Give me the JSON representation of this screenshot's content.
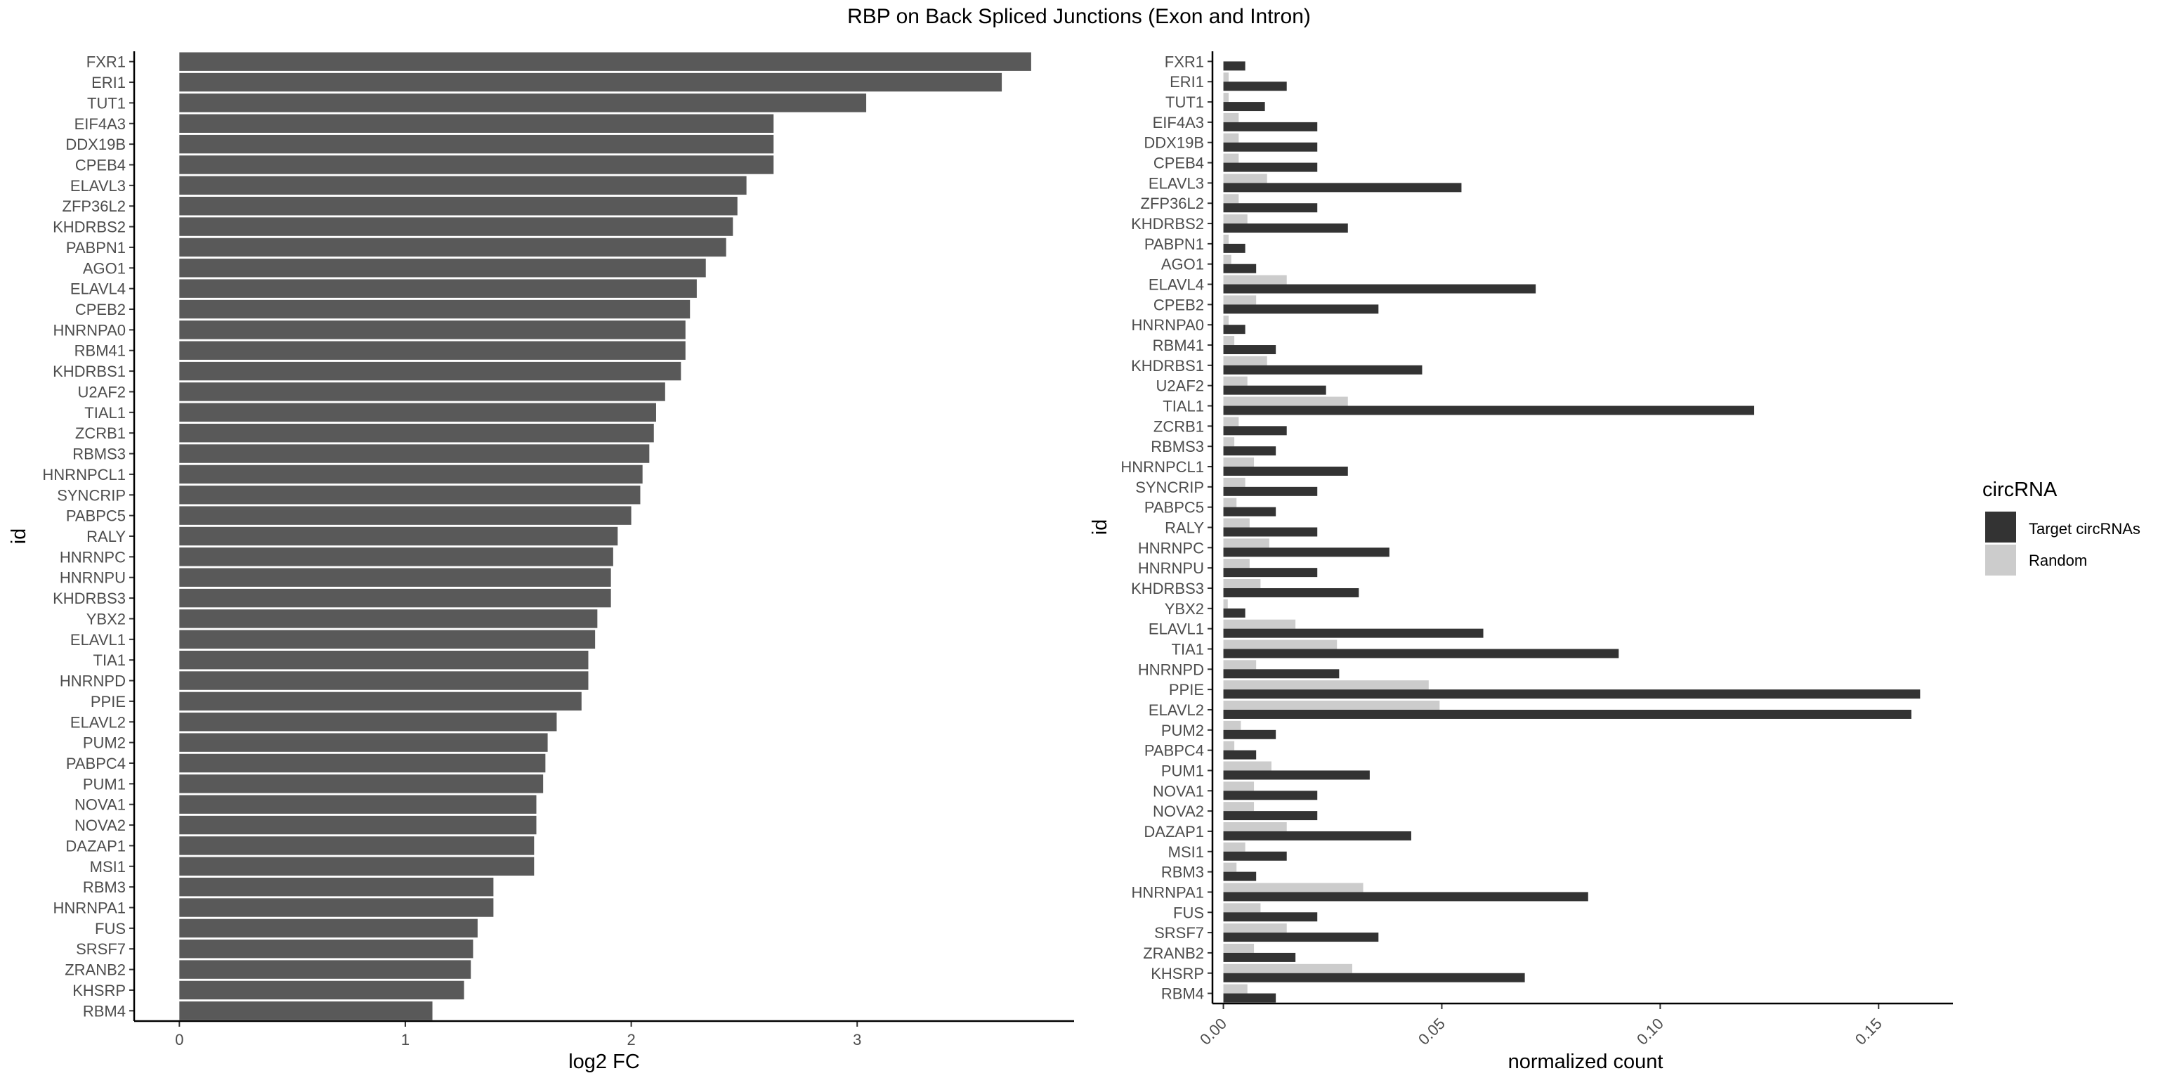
{
  "title": "RBP on Back Spliced Junctions (Exon and Intron)",
  "chart_data": [
    {
      "type": "bar",
      "orientation": "horizontal",
      "xlabel": "log2 FC",
      "ylabel": "id",
      "xlim": [
        -0.2,
        3.96
      ],
      "xticks": [
        "0",
        "1",
        "2",
        "3"
      ],
      "grid": false,
      "bar_color": "#595959",
      "categories": [
        "FXR1",
        "ERI1",
        "TUT1",
        "EIF4A3",
        "DDX19B",
        "CPEB4",
        "ELAVL3",
        "ZFP36L2",
        "KHDRBS2",
        "PABPN1",
        "AGO1",
        "ELAVL4",
        "CPEB2",
        "HNRNPA0",
        "RBM41",
        "KHDRBS1",
        "U2AF2",
        "TIAL1",
        "ZCRB1",
        "RBMS3",
        "HNRNPCL1",
        "SYNCRIP",
        "PABPC5",
        "RALY",
        "HNRNPC",
        "HNRNPU",
        "KHDRBS3",
        "YBX2",
        "ELAVL1",
        "TIA1",
        "HNRNPD",
        "PPIE",
        "ELAVL2",
        "PUM2",
        "PABPC4",
        "PUM1",
        "NOVA1",
        "NOVA2",
        "DAZAP1",
        "MSI1",
        "RBM3",
        "HNRNPA1",
        "FUS",
        "SRSF7",
        "ZRANB2",
        "KHSRP",
        "RBM4"
      ],
      "values": [
        3.77,
        3.64,
        3.04,
        2.63,
        2.63,
        2.63,
        2.51,
        2.47,
        2.45,
        2.42,
        2.33,
        2.29,
        2.26,
        2.24,
        2.24,
        2.22,
        2.15,
        2.11,
        2.1,
        2.08,
        2.05,
        2.04,
        2.0,
        1.94,
        1.92,
        1.91,
        1.91,
        1.85,
        1.84,
        1.81,
        1.81,
        1.78,
        1.67,
        1.63,
        1.62,
        1.61,
        1.58,
        1.58,
        1.57,
        1.57,
        1.39,
        1.39,
        1.32,
        1.3,
        1.29,
        1.26,
        1.12
      ]
    },
    {
      "type": "bar",
      "orientation": "horizontal",
      "grouped": true,
      "xlabel": "normalized count",
      "ylabel": "id",
      "xlim": [
        -0.0025,
        0.167
      ],
      "xticks": [
        "0.00",
        "0.05",
        "0.10",
        "0.15"
      ],
      "grid": false,
      "legend_title": "circRNA",
      "legend_position": "right",
      "categories": [
        "FXR1",
        "ERI1",
        "TUT1",
        "EIF4A3",
        "DDX19B",
        "CPEB4",
        "ELAVL3",
        "ZFP36L2",
        "KHDRBS2",
        "PABPN1",
        "AGO1",
        "ELAVL4",
        "CPEB2",
        "HNRNPA0",
        "RBM41",
        "KHDRBS1",
        "U2AF2",
        "TIAL1",
        "ZCRB1",
        "RBMS3",
        "HNRNPCL1",
        "SYNCRIP",
        "PABPC5",
        "RALY",
        "HNRNPC",
        "HNRNPU",
        "KHDRBS3",
        "YBX2",
        "ELAVL1",
        "TIA1",
        "HNRNPD",
        "PPIE",
        "ELAVL2",
        "PUM2",
        "PABPC4",
        "PUM1",
        "NOVA1",
        "NOVA2",
        "DAZAP1",
        "MSI1",
        "RBM3",
        "HNRNPA1",
        "FUS",
        "SRSF7",
        "ZRANB2",
        "KHSRP",
        "RBM4"
      ],
      "series": [
        {
          "name": "Target circRNAs",
          "color": "#333333",
          "values": [
            0.005,
            0.0145,
            0.0095,
            0.0215,
            0.0215,
            0.0215,
            0.0545,
            0.0215,
            0.0285,
            0.005,
            0.0075,
            0.0715,
            0.0355,
            0.005,
            0.012,
            0.0455,
            0.0235,
            0.1215,
            0.0145,
            0.012,
            0.0285,
            0.0215,
            0.012,
            0.0215,
            0.038,
            0.0215,
            0.031,
            0.005,
            0.0595,
            0.0905,
            0.0265,
            0.1595,
            0.1575,
            0.012,
            0.0075,
            0.0335,
            0.0215,
            0.0215,
            0.043,
            0.0145,
            0.0075,
            0.0835,
            0.0215,
            0.0355,
            0.0165,
            0.069,
            0.012
          ]
        },
        {
          "name": "Random",
          "color": "#cccccc",
          "values": [
            0.0,
            0.0012,
            0.0012,
            0.0035,
            0.0035,
            0.0035,
            0.01,
            0.0035,
            0.0055,
            0.0012,
            0.0018,
            0.0145,
            0.0075,
            0.0012,
            0.0025,
            0.01,
            0.0055,
            0.0285,
            0.0035,
            0.0025,
            0.007,
            0.005,
            0.003,
            0.006,
            0.0105,
            0.006,
            0.0085,
            0.001,
            0.0165,
            0.026,
            0.0075,
            0.047,
            0.0495,
            0.004,
            0.0025,
            0.011,
            0.007,
            0.007,
            0.0145,
            0.005,
            0.003,
            0.032,
            0.0085,
            0.0145,
            0.007,
            0.0295,
            0.0055
          ]
        }
      ]
    }
  ]
}
